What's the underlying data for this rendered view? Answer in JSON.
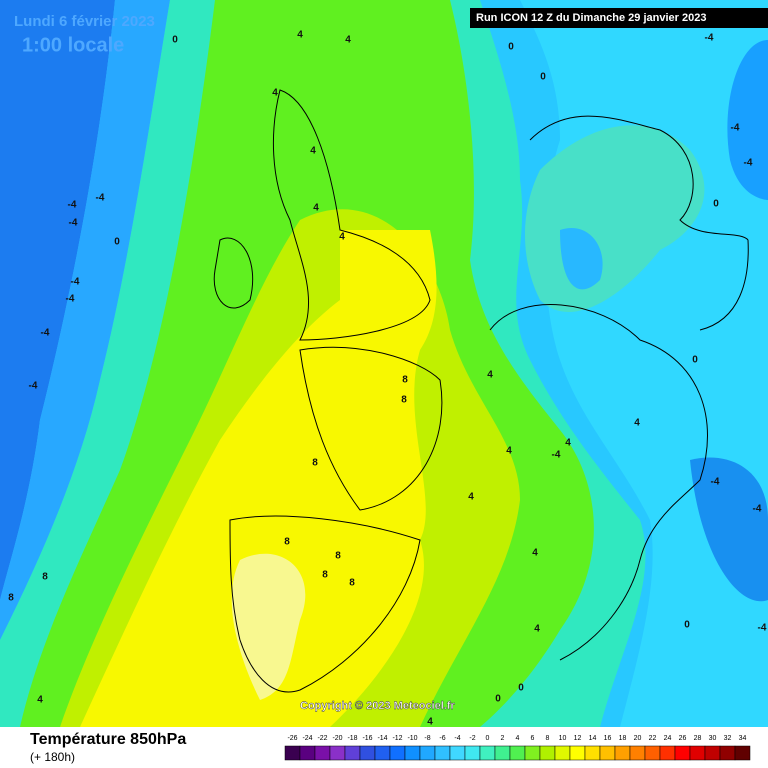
{
  "header": {
    "date": "Lundi 6 février 2023",
    "time": "1:00 locale",
    "run": "Run ICON 12 Z du Dimanche 29 janvier 2023"
  },
  "copyright": "Copyright © 2023 Meteociel.fr",
  "footer": {
    "title": "Température 850hPa",
    "lead": "(+ 180h)"
  },
  "contour_labels": [
    0,
    4,
    4,
    4,
    4,
    4,
    4,
    -4,
    -4,
    -4,
    0,
    -4,
    -4,
    -4,
    -4,
    8,
    8,
    8,
    8,
    8,
    8,
    8,
    8,
    8,
    4,
    4,
    4,
    4,
    0,
    0,
    0,
    0,
    0,
    -4,
    -4,
    -4,
    -4,
    -4,
    4,
    4,
    -4,
    0,
    0,
    -4,
    4,
    4,
    4
  ],
  "color_scale": {
    "values": [
      -26,
      -24,
      -22,
      -20,
      -18,
      -16,
      -14,
      -12,
      -10,
      -8,
      -6,
      -4,
      -2,
      0,
      2,
      4,
      6,
      8,
      10,
      12,
      14,
      16,
      18,
      20,
      22,
      24,
      26,
      28,
      30,
      32,
      34
    ],
    "colors": [
      "#3a0050",
      "#5a0080",
      "#7a10a8",
      "#8a30c8",
      "#6040d8",
      "#3050e0",
      "#2060f0",
      "#1070ff",
      "#1090ff",
      "#20a8ff",
      "#30c0ff",
      "#40d8ff",
      "#40e8f0",
      "#40f0c0",
      "#40f090",
      "#50f050",
      "#80f020",
      "#b0f000",
      "#e0f800",
      "#ffff00",
      "#ffe000",
      "#ffc000",
      "#ffa000",
      "#ff8000",
      "#ff6000",
      "#ff3000",
      "#ff0000",
      "#e00000",
      "#c00000",
      "#900000",
      "#600000"
    ]
  }
}
